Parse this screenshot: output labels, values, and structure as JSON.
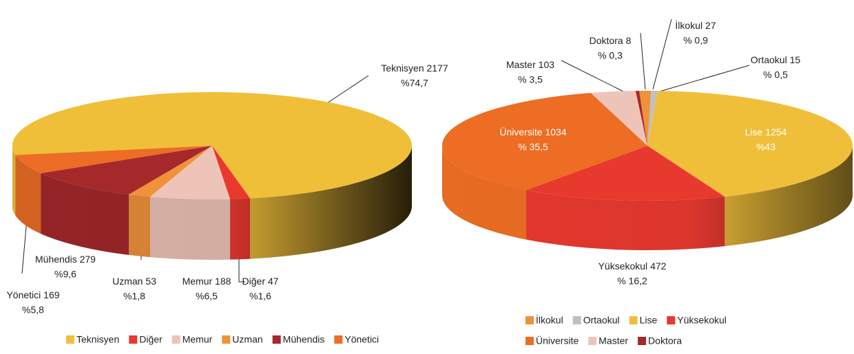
{
  "chart_data": [
    {
      "type": "pie",
      "categories": [
        "Teknisyen",
        "Diğer",
        "Memur",
        "Uzman",
        "Mühendis",
        "Yönetici"
      ],
      "values": [
        2177,
        47,
        188,
        53,
        279,
        169
      ],
      "percents": [
        74.7,
        1.6,
        6.5,
        1.8,
        9.6,
        5.8
      ],
      "percent_labels": [
        "%74,7",
        "%1,6",
        "%6,5",
        "%1,8",
        "%9,6",
        "%5,8"
      ],
      "colors": [
        "#f0bf3a",
        "#e8392f",
        "#efc4b8",
        "#f0923a",
        "#a5282b",
        "#ec6d23"
      ]
    },
    {
      "type": "pie",
      "categories": [
        "İlkokul",
        "Ortaokul",
        "Lise",
        "Yüksekokul",
        "Üniversite",
        "Master",
        "Doktora"
      ],
      "values": [
        27,
        15,
        1254,
        472,
        1034,
        103,
        8
      ],
      "percents": [
        0.9,
        0.5,
        43,
        16.2,
        35.5,
        3.5,
        0.3
      ],
      "percent_labels": [
        "% 0,9",
        "% 0,5",
        "%43",
        "% 16,2",
        "% 35,5",
        "% 3,5",
        "% 0,3"
      ],
      "colors": [
        "#f0923a",
        "#c0c0c0",
        "#f0bf3a",
        "#e8392f",
        "#ec6d23",
        "#efc4b8",
        "#a5282b"
      ]
    }
  ]
}
